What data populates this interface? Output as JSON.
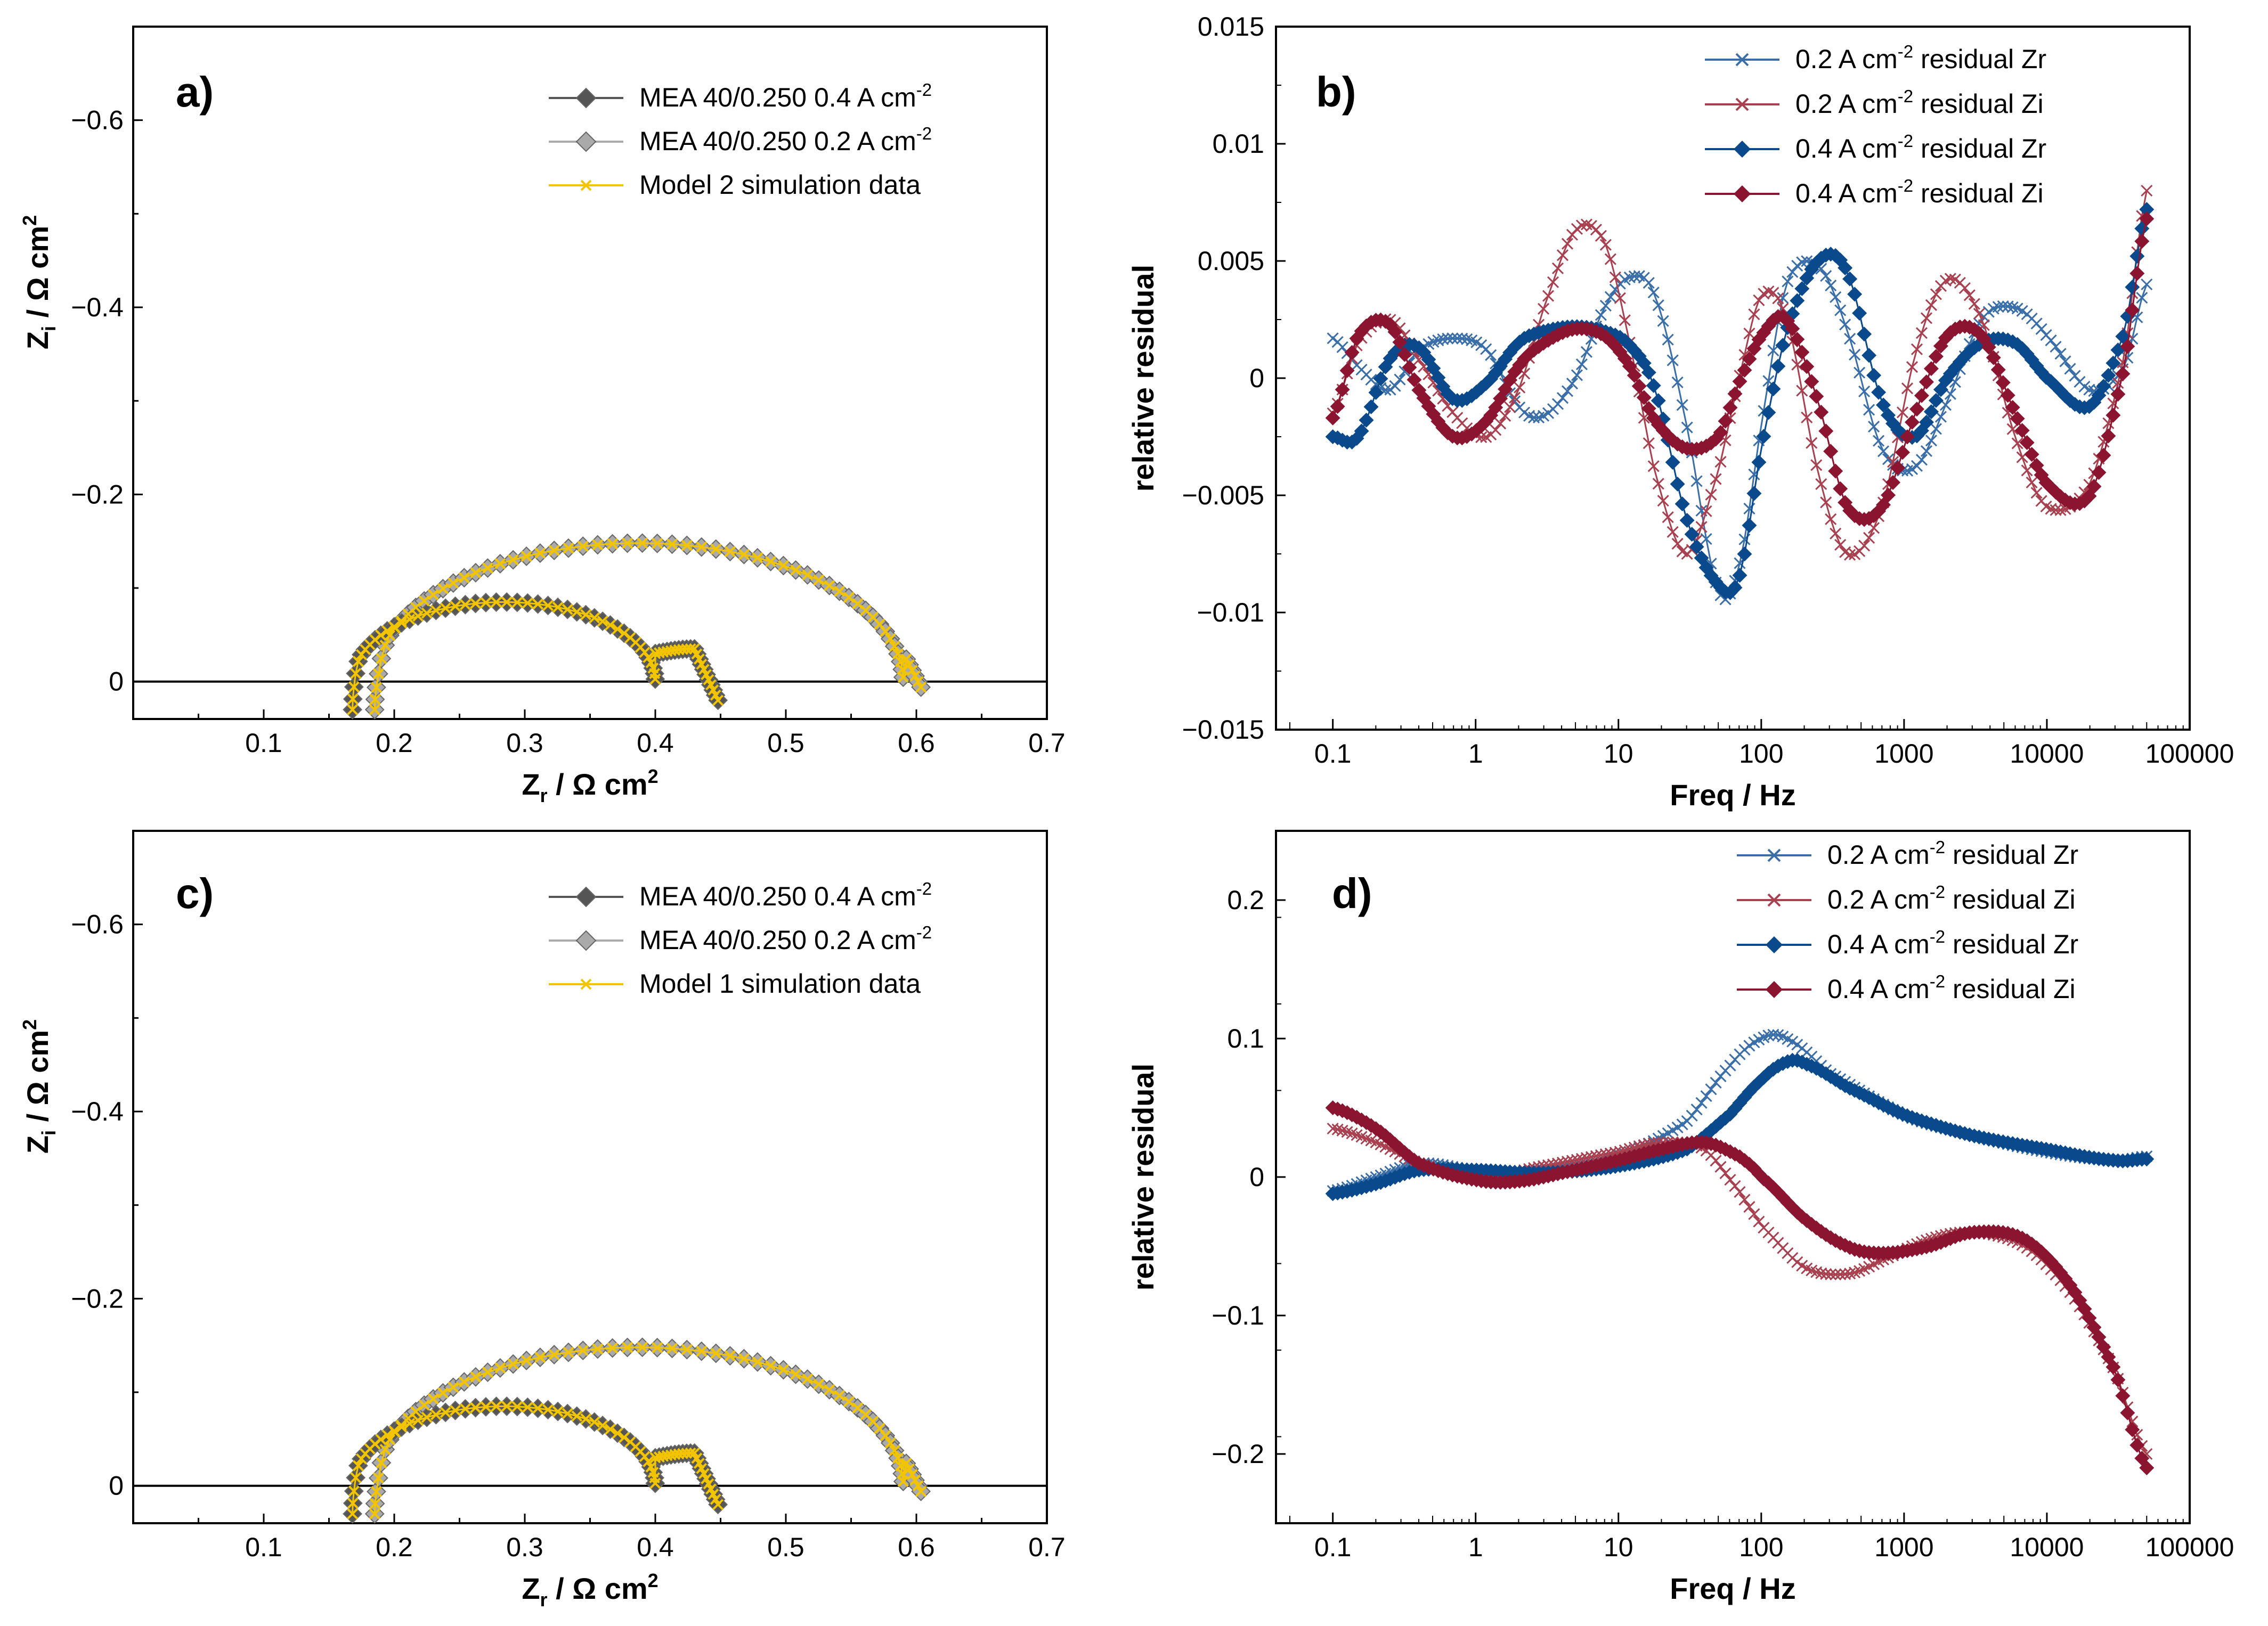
{
  "chart_data": [
    {
      "panel": "a)",
      "type": "scatter",
      "subtype": "nyquist",
      "xlabel": {
        "main": "Z",
        "sub": "r",
        "unit": " / Ω cm",
        "sup": "2"
      },
      "ylabel": {
        "main": "Z",
        "sub": "i",
        "unit": " / Ω cm",
        "sup": "2"
      },
      "xlim": [
        0,
        0.7
      ],
      "ylim": [
        0.04,
        -0.7
      ],
      "xticks": [
        "0.1",
        "0.2",
        "0.3",
        "0.4",
        "0.5",
        "0.6",
        "0.7"
      ],
      "yticks": [
        "−0.6",
        "−0.4",
        "−0.2",
        "0"
      ],
      "legend": [
        {
          "label": "MEA 40/0.250 0.4 A cm",
          "sup": "-2",
          "color": "#555555",
          "marker": "diamond"
        },
        {
          "label": "MEA 40/0.250 0.2 A cm",
          "sup": "-2",
          "color": "#aaaaaa",
          "marker": "diamond"
        },
        {
          "label": "Model 2 simulation data",
          "sup": "",
          "color": "#f2c500",
          "marker": "x"
        }
      ],
      "series": [
        {
          "name": "MEA 40/0.250 0.4 A cm-2",
          "start": [
            0.168,
            0.03
          ],
          "peak1": [
            0.3,
            -0.085
          ],
          "valley": [
            0.4,
            -0.03
          ],
          "peak2": [
            0.43,
            -0.035
          ],
          "end": [
            0.45,
            0.02
          ]
        },
        {
          "name": "MEA 40/0.250 0.2 A cm-2",
          "start": [
            0.185,
            0.03
          ],
          "peak1": [
            0.41,
            -0.148
          ],
          "shoulder": [
            0.59,
            -0.03
          ],
          "end": [
            0.605,
            0.01
          ]
        },
        {
          "name": "Model 2 simulation data",
          "overlays": "both measured curves"
        }
      ]
    },
    {
      "panel": "b)",
      "type": "line",
      "xscale": "log",
      "xlabel": "Freq / Hz",
      "ylabel": "relative residual",
      "xlim": [
        0.04,
        100000
      ],
      "ylim": [
        -0.015,
        0.015
      ],
      "xticks": [
        "0.1",
        "1",
        "10",
        "100",
        "1000",
        "10000",
        "100000"
      ],
      "yticks": [
        "0.015",
        "0.01",
        "0.005",
        "0",
        "−0.005",
        "−0.01",
        "−0.015"
      ],
      "legend": [
        {
          "label": "0.2 A cm",
          "sup": "-2",
          "suffix": " residual Zr",
          "color": "#3a6ea8",
          "marker": "x"
        },
        {
          "label": "0.2 A cm",
          "sup": "-2",
          "suffix": " residual Zi",
          "color": "#a8404f",
          "marker": "x"
        },
        {
          "label": "0.4 A cm",
          "sup": "-2",
          "suffix": " residual Zr",
          "color": "#0a4a8c",
          "marker": "diamond"
        },
        {
          "label": "0.4 A cm",
          "sup": "-2",
          "suffix": " residual Zi",
          "color": "#8b1530",
          "marker": "diamond"
        }
      ],
      "series": [
        {
          "name": "0.2 A cm-2 residual Zr",
          "x": [
            0.1,
            0.15,
            0.25,
            0.4,
            0.7,
            1.2,
            2,
            3,
            5,
            8,
            12,
            18,
            30,
            50,
            70,
            100,
            150,
            250,
            400,
            700,
            1200,
            2000,
            3500,
            6000,
            10000,
            20000,
            35000,
            50000
          ],
          "values": [
            0.0017,
            0.0005,
            -0.0005,
            0.0012,
            0.0017,
            0.0012,
            -0.0012,
            -0.0016,
            0.0,
            0.003,
            0.0043,
            0.0035,
            -0.002,
            -0.009,
            -0.008,
            -0.002,
            0.004,
            0.0048,
            0.002,
            -0.003,
            -0.0038,
            -0.001,
            0.0025,
            0.003,
            0.0018,
            -0.0005,
            0.0005,
            0.004
          ]
        },
        {
          "name": "0.2 A cm-2 residual Zi",
          "x": [
            0.1,
            0.15,
            0.25,
            0.4,
            0.7,
            1.2,
            2,
            3,
            5,
            8,
            12,
            18,
            30,
            50,
            70,
            100,
            150,
            250,
            400,
            700,
            1200,
            2000,
            3500,
            6000,
            10000,
            20000,
            35000,
            50000
          ],
          "values": [
            -0.0015,
            0.0015,
            0.0025,
            0.0008,
            -0.0015,
            -0.0025,
            -0.0005,
            0.003,
            0.0063,
            0.0058,
            0.0015,
            -0.004,
            -0.0075,
            -0.004,
            0.0,
            0.0035,
            0.0025,
            -0.004,
            -0.0075,
            -0.0055,
            0.001,
            0.0042,
            0.0025,
            -0.0025,
            -0.0055,
            -0.0045,
            0.001,
            0.008
          ]
        },
        {
          "name": "0.4 A cm-2 residual Zr",
          "x": [
            0.1,
            0.15,
            0.25,
            0.4,
            0.7,
            1.2,
            2,
            3,
            5,
            8,
            12,
            18,
            30,
            50,
            70,
            100,
            150,
            250,
            400,
            700,
            1200,
            2000,
            3500,
            6000,
            10000,
            20000,
            35000,
            50000
          ],
          "values": [
            -0.0025,
            -0.0025,
            0.0008,
            0.0013,
            -0.0009,
            -0.0002,
            0.0015,
            0.002,
            0.0022,
            0.002,
            0.0014,
            -0.0005,
            -0.006,
            -0.0088,
            -0.0085,
            -0.003,
            0.002,
            0.005,
            0.0045,
            -0.001,
            -0.0025,
            0.0,
            0.0015,
            0.0015,
            0.0,
            -0.0012,
            0.002,
            0.0072
          ]
        },
        {
          "name": "0.4 A cm-2 residual Zi",
          "x": [
            0.1,
            0.15,
            0.25,
            0.4,
            0.7,
            1.2,
            2,
            3,
            5,
            8,
            12,
            18,
            30,
            50,
            70,
            100,
            150,
            250,
            400,
            700,
            1200,
            2000,
            3500,
            6000,
            10000,
            20000,
            35000,
            50000
          ],
          "values": [
            -0.0017,
            0.0018,
            0.0023,
            -0.0005,
            -0.0025,
            -0.0018,
            0.0005,
            0.0015,
            0.0021,
            0.0018,
            0.0005,
            -0.0018,
            -0.003,
            -0.0025,
            -0.0002,
            0.0018,
            0.0025,
            -0.001,
            -0.0055,
            -0.0055,
            -0.0015,
            0.0018,
            0.0018,
            -0.0015,
            -0.0045,
            -0.005,
            0.0005,
            0.0068
          ]
        }
      ]
    },
    {
      "panel": "c)",
      "type": "scatter",
      "subtype": "nyquist",
      "xlabel": {
        "main": "Z",
        "sub": "r",
        "unit": " / Ω cm",
        "sup": "2"
      },
      "ylabel": {
        "main": "Z",
        "sub": "i",
        "unit": " / Ω cm",
        "sup": "2"
      },
      "xlim": [
        0,
        0.7
      ],
      "ylim": [
        0.04,
        -0.7
      ],
      "xticks": [
        "0.1",
        "0.2",
        "0.3",
        "0.4",
        "0.5",
        "0.6",
        "0.7"
      ],
      "yticks": [
        "−0.6",
        "−0.4",
        "−0.2",
        "0"
      ],
      "legend": [
        {
          "label": "MEA 40/0.250 0.4 A cm",
          "sup": "-2",
          "color": "#555555",
          "marker": "diamond"
        },
        {
          "label": "MEA 40/0.250 0.2 A cm",
          "sup": "-2",
          "color": "#aaaaaa",
          "marker": "diamond"
        },
        {
          "label": "Model 1 simulation data",
          "sup": "",
          "color": "#f2c500",
          "marker": "x"
        }
      ],
      "series": [
        {
          "name": "MEA 40/0.250 0.4 A cm-2",
          "start": [
            0.168,
            0.03
          ],
          "peak1": [
            0.3,
            -0.085
          ],
          "valley": [
            0.4,
            -0.03
          ],
          "peak2": [
            0.43,
            -0.035
          ],
          "end": [
            0.45,
            0.02
          ]
        },
        {
          "name": "MEA 40/0.250 0.2 A cm-2",
          "start": [
            0.185,
            0.03
          ],
          "peak1": [
            0.41,
            -0.148
          ],
          "shoulder": [
            0.59,
            -0.03
          ],
          "end": [
            0.605,
            0.01
          ]
        },
        {
          "name": "Model 1 simulation data",
          "overlays": "both measured curves"
        }
      ]
    },
    {
      "panel": "d)",
      "type": "line",
      "xscale": "log",
      "xlabel": "Freq / Hz",
      "ylabel": "relative residual",
      "xlim": [
        0.04,
        100000
      ],
      "ylim": [
        -0.25,
        0.25
      ],
      "xticks": [
        "0.1",
        "1",
        "10",
        "100",
        "1000",
        "10000",
        "100000"
      ],
      "yticks": [
        "0.2",
        "0.1",
        "0",
        "−0.1",
        "−0.2"
      ],
      "legend": [
        {
          "label": "0.2 A cm",
          "sup": "-2",
          "suffix": " residual Zr",
          "color": "#3a6ea8",
          "marker": "x"
        },
        {
          "label": "0.2 A cm",
          "sup": "-2",
          "suffix": " residual Zi",
          "color": "#a8404f",
          "marker": "x"
        },
        {
          "label": "0.4 A cm",
          "sup": "-2",
          "suffix": " residual Zr",
          "color": "#0a4a8c",
          "marker": "diamond"
        },
        {
          "label": "0.4 A cm",
          "sup": "-2",
          "suffix": " residual Zi",
          "color": "#8b1530",
          "marker": "diamond"
        }
      ],
      "series": [
        {
          "name": "0.2 A cm-2 residual Zr",
          "x": [
            0.1,
            0.2,
            0.4,
            1,
            3,
            10,
            30,
            60,
            100,
            150,
            300,
            1000,
            3000,
            10000,
            30000,
            50000
          ],
          "values": [
            -0.01,
            0.0,
            0.01,
            0.005,
            0.005,
            0.015,
            0.04,
            0.08,
            0.1,
            0.1,
            0.075,
            0.045,
            0.03,
            0.018,
            0.012,
            0.015
          ]
        },
        {
          "name": "0.2 A cm-2 residual Zi",
          "x": [
            0.1,
            0.2,
            0.4,
            1,
            3,
            10,
            20,
            40,
            70,
            100,
            200,
            400,
            700,
            1500,
            3000,
            7000,
            15000,
            30000,
            50000
          ],
          "values": [
            0.035,
            0.025,
            0.01,
            0.0,
            0.008,
            0.018,
            0.025,
            0.02,
            -0.01,
            -0.035,
            -0.065,
            -0.07,
            -0.06,
            -0.045,
            -0.04,
            -0.05,
            -0.085,
            -0.14,
            -0.2
          ]
        },
        {
          "name": "0.4 A cm-2 residual Zr",
          "x": [
            0.1,
            0.2,
            0.4,
            1,
            3,
            10,
            30,
            60,
            100,
            150,
            200,
            400,
            1000,
            3000,
            10000,
            30000,
            50000
          ],
          "values": [
            -0.012,
            -0.005,
            0.005,
            0.005,
            0.003,
            0.008,
            0.02,
            0.045,
            0.07,
            0.083,
            0.082,
            0.065,
            0.045,
            0.03,
            0.02,
            0.012,
            0.013
          ]
        },
        {
          "name": "0.4 A cm-2 residual Zi",
          "x": [
            0.1,
            0.2,
            0.4,
            1,
            2,
            5,
            10,
            20,
            40,
            70,
            100,
            200,
            400,
            700,
            1500,
            3000,
            7000,
            15000,
            30000,
            50000
          ],
          "values": [
            0.05,
            0.035,
            0.01,
            -0.002,
            -0.003,
            0.005,
            0.012,
            0.02,
            0.025,
            0.015,
            0.0,
            -0.03,
            -0.05,
            -0.055,
            -0.05,
            -0.04,
            -0.045,
            -0.08,
            -0.14,
            -0.21
          ]
        }
      ]
    }
  ]
}
